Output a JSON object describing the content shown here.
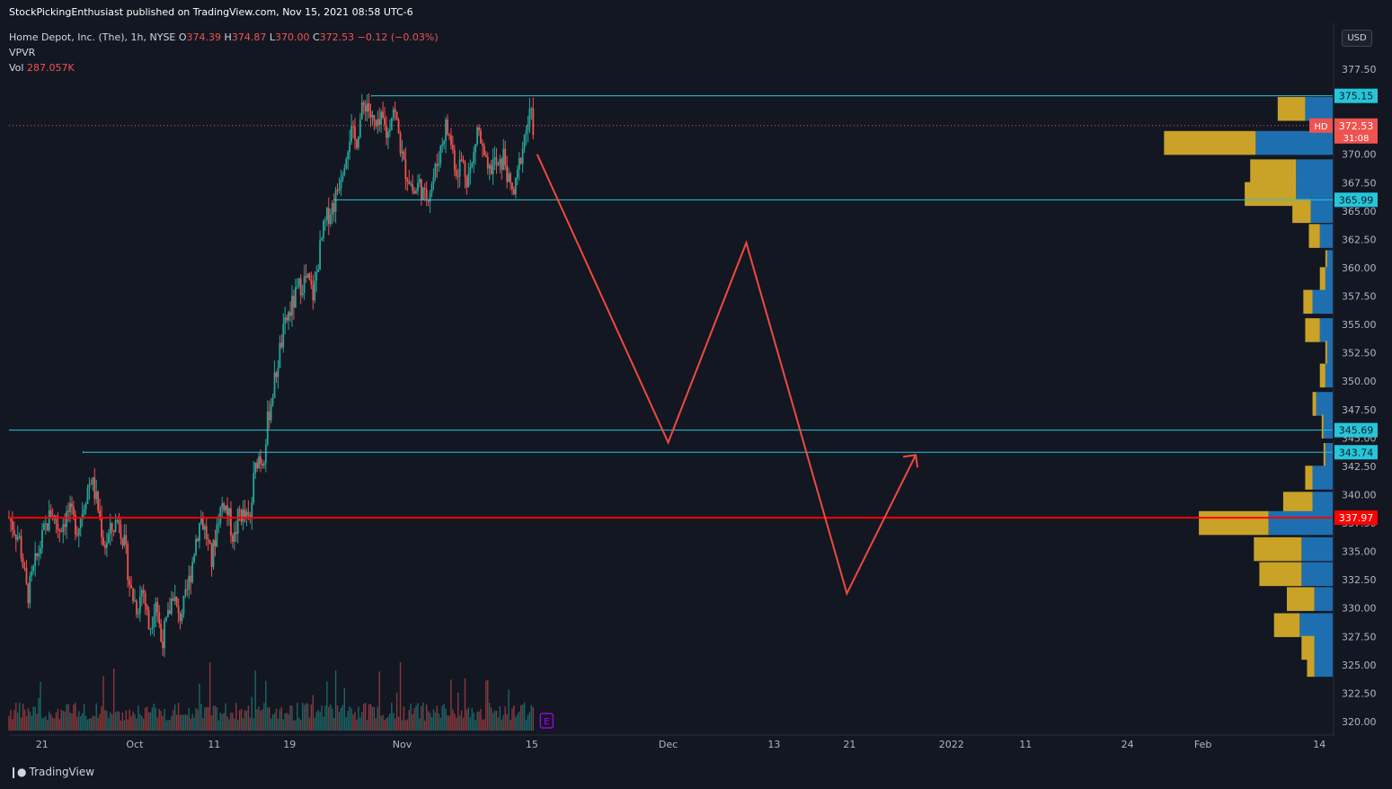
{
  "publish_line": "StockPickingEnthusiast published on TradingView.com, Nov 15, 2021 08:58 UTC-6",
  "symbol": {
    "name": "Home Depot, Inc. (The), 1h, NYSE",
    "o_label": "O",
    "o_value": "374.39",
    "h_label": "H",
    "h_value": "374.87",
    "l_label": "L",
    "l_value": "370.00",
    "c_label": "C",
    "c_value": "372.53",
    "change": "−0.12 (−0.03%)"
  },
  "indicators": {
    "vpvr_label": "VPVR",
    "vol_label": "Vol",
    "vol_value": "287.057K"
  },
  "currency": "USD",
  "brand": "TradingView",
  "colors": {
    "background": "#131722",
    "up": "#26a69a",
    "down": "#ef5350",
    "level_line": "#26c6da",
    "support_red": "#ff0000",
    "projection": "#f0493e",
    "vp_gold": "#c9a227",
    "vp_blue": "#1e6fb0"
  },
  "chart_data": {
    "type": "candlestick",
    "y_axis": {
      "min": 320,
      "max": 378.5,
      "ticks": [
        "377.50",
        "375.00",
        "372.50",
        "370.00",
        "367.50",
        "365.00",
        "362.50",
        "360.00",
        "357.50",
        "355.00",
        "352.50",
        "350.00",
        "347.50",
        "345.00",
        "342.50",
        "340.00",
        "337.50",
        "335.00",
        "332.50",
        "330.00",
        "327.50",
        "325.00",
        "322.50",
        "320.00"
      ]
    },
    "x_axis": {
      "labels": [
        {
          "text": "21",
          "t": 0.025
        },
        {
          "text": "Oct",
          "t": 0.095
        },
        {
          "text": "11",
          "t": 0.155
        },
        {
          "text": "19",
          "t": 0.212
        },
        {
          "text": "Nov",
          "t": 0.297
        },
        {
          "text": "15",
          "t": 0.395
        },
        {
          "text": "Dec",
          "t": 0.498
        },
        {
          "text": "13",
          "t": 0.578
        },
        {
          "text": "21",
          "t": 0.635
        },
        {
          "text": "2022",
          "t": 0.712
        },
        {
          "text": "11",
          "t": 0.768
        },
        {
          "text": "24",
          "t": 0.845
        },
        {
          "text": "Feb",
          "t": 0.902
        },
        {
          "text": "14",
          "t": 0.99
        }
      ]
    },
    "close_path": [
      [
        0.0,
        338.0
      ],
      [
        0.008,
        336.0
      ],
      [
        0.014,
        331.0
      ],
      [
        0.02,
        334.0
      ],
      [
        0.026,
        336.5
      ],
      [
        0.032,
        338.5
      ],
      [
        0.038,
        337.0
      ],
      [
        0.045,
        338.5
      ],
      [
        0.052,
        337.0
      ],
      [
        0.058,
        340.0
      ],
      [
        0.062,
        341.5
      ],
      [
        0.067,
        339.0
      ],
      [
        0.072,
        335.5
      ],
      [
        0.078,
        337.0
      ],
      [
        0.083,
        338.0
      ],
      [
        0.088,
        335.0
      ],
      [
        0.092,
        331.5
      ],
      [
        0.097,
        330.0
      ],
      [
        0.101,
        332.0
      ],
      [
        0.106,
        328.0
      ],
      [
        0.111,
        331.0
      ],
      [
        0.115,
        327.0
      ],
      [
        0.12,
        329.0
      ],
      [
        0.124,
        331.5
      ],
      [
        0.128,
        329.0
      ],
      [
        0.133,
        330.5
      ],
      [
        0.137,
        333.0
      ],
      [
        0.141,
        336.0
      ],
      [
        0.145,
        338.0
      ],
      [
        0.149,
        336.5
      ],
      [
        0.153,
        334.0
      ],
      [
        0.158,
        338.0
      ],
      [
        0.162,
        339.5
      ],
      [
        0.166,
        338.0
      ],
      [
        0.17,
        336.0
      ],
      [
        0.174,
        338.5
      ],
      [
        0.178,
        338.0
      ],
      [
        0.182,
        337.5
      ],
      [
        0.185,
        341.5
      ],
      [
        0.188,
        343.5
      ],
      [
        0.192,
        343.0
      ],
      [
        0.196,
        347.0
      ],
      [
        0.2,
        349.5
      ],
      [
        0.205,
        353.0
      ],
      [
        0.21,
        355.5
      ],
      [
        0.215,
        357.0
      ],
      [
        0.22,
        358.5
      ],
      [
        0.225,
        359.0
      ],
      [
        0.23,
        357.5
      ],
      [
        0.234,
        361.0
      ],
      [
        0.238,
        363.5
      ],
      [
        0.242,
        365.0
      ],
      [
        0.246,
        365.8
      ],
      [
        0.25,
        368.0
      ],
      [
        0.254,
        370.0
      ],
      [
        0.258,
        372.0
      ],
      [
        0.262,
        371.0
      ],
      [
        0.266,
        373.5
      ],
      [
        0.27,
        374.8
      ],
      [
        0.274,
        373.0
      ],
      [
        0.278,
        372.0
      ],
      [
        0.282,
        373.0
      ],
      [
        0.286,
        371.5
      ],
      [
        0.29,
        374.5
      ],
      [
        0.294,
        372.0
      ],
      [
        0.298,
        369.0
      ],
      [
        0.302,
        368.0
      ],
      [
        0.306,
        366.5
      ],
      [
        0.31,
        367.5
      ],
      [
        0.314,
        366.0
      ],
      [
        0.318,
        367.0
      ],
      [
        0.322,
        368.5
      ],
      [
        0.326,
        370.5
      ],
      [
        0.33,
        372.5
      ],
      [
        0.334,
        371.0
      ],
      [
        0.338,
        368.5
      ],
      [
        0.342,
        369.5
      ],
      [
        0.346,
        368.0
      ],
      [
        0.35,
        369.0
      ],
      [
        0.354,
        372.5
      ],
      [
        0.358,
        370.0
      ],
      [
        0.362,
        368.0
      ],
      [
        0.366,
        369.5
      ],
      [
        0.37,
        368.5
      ],
      [
        0.374,
        370.0
      ],
      [
        0.378,
        367.0
      ],
      [
        0.382,
        366.5
      ],
      [
        0.386,
        369.5
      ],
      [
        0.39,
        372.0
      ],
      [
        0.394,
        373.5
      ],
      [
        0.396,
        372.5
      ]
    ],
    "volume_max": 850000,
    "volume_profile": [
      {
        "price": 374.0,
        "up": 0.15,
        "down": 0.15
      },
      {
        "price": 371.0,
        "up": 0.5,
        "down": 0.42
      },
      {
        "price": 368.5,
        "up": 0.25,
        "down": 0.2
      },
      {
        "price": 366.5,
        "up": 0.28,
        "down": 0.2
      },
      {
        "price": 365.0,
        "up": 0.1,
        "down": 0.12
      },
      {
        "price": 362.8,
        "up": 0.06,
        "down": 0.07
      },
      {
        "price": 360.5,
        "up": 0.01,
        "down": 0.03
      },
      {
        "price": 359.0,
        "up": 0.03,
        "down": 0.04
      },
      {
        "price": 357.0,
        "up": 0.05,
        "down": 0.11
      },
      {
        "price": 354.5,
        "up": 0.08,
        "down": 0.07
      },
      {
        "price": 352.5,
        "up": 0.01,
        "down": 0.03
      },
      {
        "price": 350.5,
        "up": 0.03,
        "down": 0.04
      },
      {
        "price": 348.0,
        "up": 0.02,
        "down": 0.09
      },
      {
        "price": 346.0,
        "up": 0.01,
        "down": 0.05
      },
      {
        "price": 343.5,
        "up": 0.01,
        "down": 0.04
      },
      {
        "price": 341.5,
        "up": 0.04,
        "down": 0.11
      },
      {
        "price": 339.2,
        "up": 0.16,
        "down": 0.11
      },
      {
        "price": 337.5,
        "up": 0.38,
        "down": 0.35
      },
      {
        "price": 335.2,
        "up": 0.26,
        "down": 0.17
      },
      {
        "price": 333.0,
        "up": 0.23,
        "down": 0.17
      },
      {
        "price": 330.8,
        "up": 0.15,
        "down": 0.1
      },
      {
        "price": 328.5,
        "up": 0.14,
        "down": 0.18
      },
      {
        "price": 326.5,
        "up": 0.07,
        "down": 0.1
      },
      {
        "price": 325.0,
        "up": 0.04,
        "down": 0.1
      }
    ],
    "horizontal_levels": [
      {
        "price": 375.15,
        "label": "375.15",
        "color": "#26c6da",
        "from": 0.274
      },
      {
        "price": 365.99,
        "label": "365.99",
        "color": "#26c6da",
        "from": 0.246
      },
      {
        "price": 345.69,
        "label": "345.69",
        "color": "#26c6da",
        "from": 0.0
      },
      {
        "price": 343.74,
        "label": "343.74",
        "color": "#26c6da",
        "from": 0.056
      },
      {
        "price": 337.97,
        "label": "337.97",
        "color": "#ff0000",
        "from": 0.0
      }
    ],
    "last_price": {
      "symbol": "HD",
      "price": "372.53",
      "countdown": "31:08",
      "value": 372.53
    },
    "projection_path": [
      [
        0.399,
        370.0
      ],
      [
        0.498,
        344.6
      ],
      [
        0.557,
        362.2
      ],
      [
        0.633,
        331.3
      ],
      [
        0.685,
        343.5
      ]
    ],
    "earnings_marker": "E"
  }
}
